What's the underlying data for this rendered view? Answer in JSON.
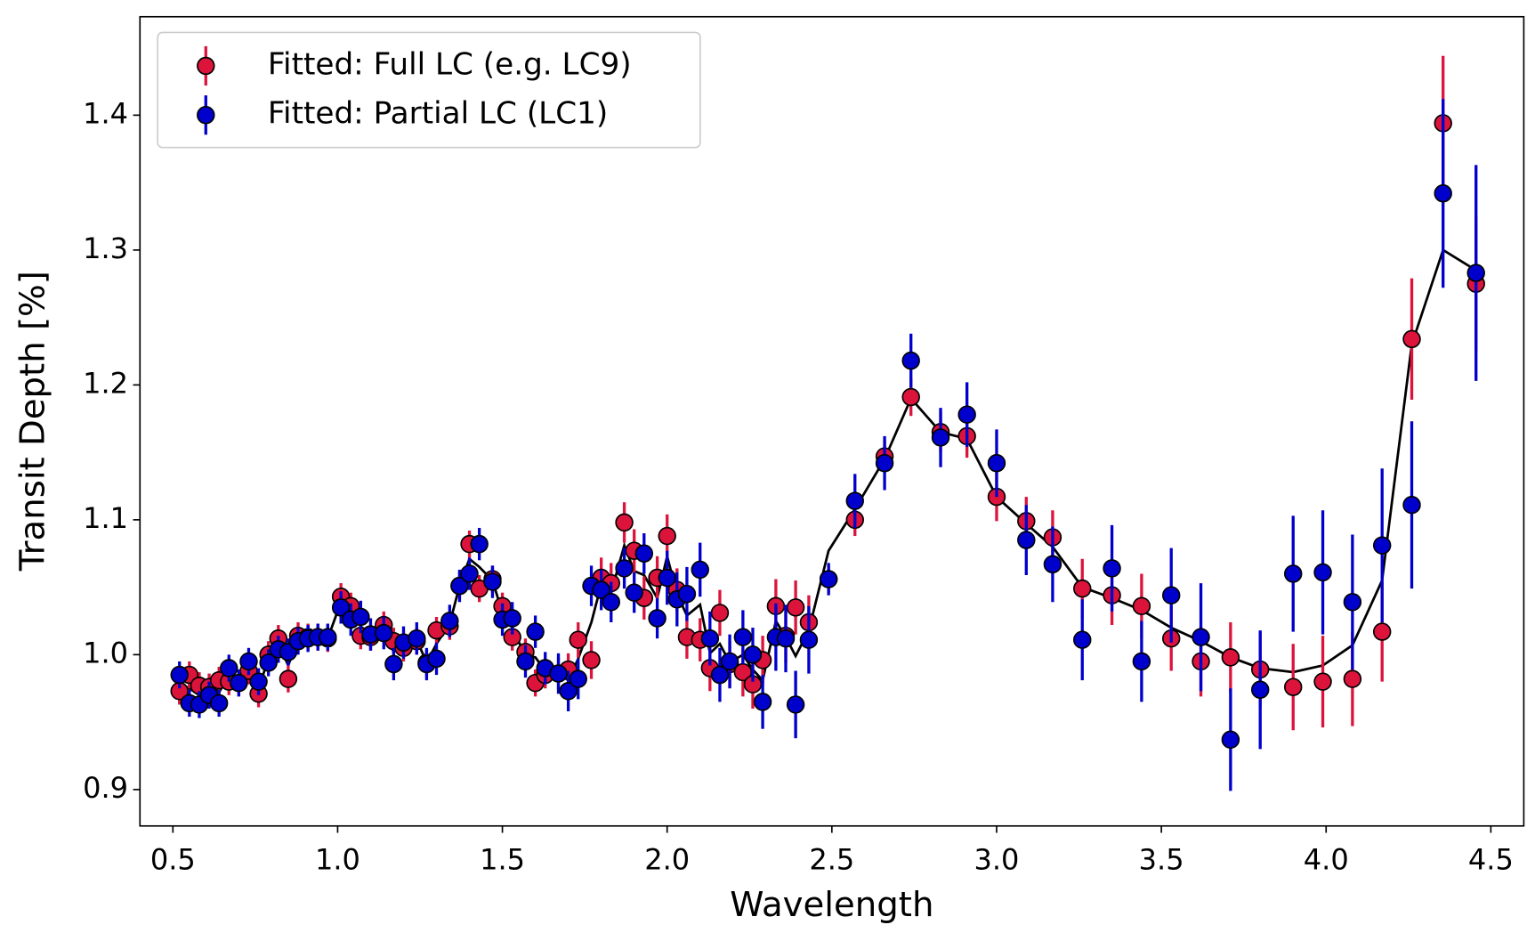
{
  "chart_data": {
    "type": "errorbar",
    "xlabel": "Wavelength",
    "ylabel": "Transit Depth [%]",
    "x": [
      0.52,
      0.55,
      0.58,
      0.61,
      0.64,
      0.67,
      0.7,
      0.73,
      0.76,
      0.79,
      0.82,
      0.85,
      0.88,
      0.91,
      0.94,
      0.97,
      1.01,
      1.04,
      1.07,
      1.1,
      1.14,
      1.17,
      1.2,
      1.24,
      1.27,
      1.3,
      1.34,
      1.37,
      1.4,
      1.43,
      1.47,
      1.5,
      1.53,
      1.57,
      1.6,
      1.63,
      1.67,
      1.7,
      1.73,
      1.77,
      1.8,
      1.83,
      1.87,
      1.9,
      1.93,
      1.97,
      2.0,
      2.03,
      2.06,
      2.1,
      2.13,
      2.16,
      2.19,
      2.23,
      2.26,
      2.29,
      2.33,
      2.36,
      2.39,
      2.43,
      2.49,
      2.57,
      2.66,
      2.74,
      2.83,
      2.91,
      3.0,
      3.09,
      3.17,
      3.26,
      3.35,
      3.44,
      3.53,
      3.62,
      3.71,
      3.8,
      3.9,
      3.99,
      4.08,
      4.17,
      4.26,
      4.355,
      4.455
    ],
    "series": [
      {
        "name": "Fitted: Full LC (e.g. LC9)",
        "color": "#dc143c",
        "values": [
          0.973,
          0.985,
          0.977,
          0.976,
          0.981,
          0.98,
          0.979,
          0.988,
          0.971,
          1.0,
          1.012,
          0.982,
          1.014,
          1.013,
          1.013,
          1.012,
          1.043,
          1.036,
          1.014,
          1.013,
          1.022,
          1.01,
          1.005,
          1.01,
          0.994,
          1.018,
          1.021,
          1.051,
          1.082,
          1.049,
          1.056,
          1.036,
          1.013,
          1.002,
          0.979,
          0.985,
          0.986,
          0.989,
          1.011,
          0.996,
          1.057,
          1.053,
          1.098,
          1.077,
          1.042,
          1.057,
          1.088,
          1.048,
          1.013,
          1.011,
          0.99,
          1.031,
          0.993,
          0.987,
          0.978,
          0.996,
          1.036,
          1.014,
          1.035,
          1.024,
          1.056,
          1.1,
          1.147,
          1.191,
          1.165,
          1.162,
          1.117,
          1.099,
          1.087,
          1.049,
          1.044,
          1.036,
          1.012,
          0.995,
          0.998,
          0.989,
          0.976,
          0.98,
          0.982,
          1.017,
          1.234,
          1.394,
          1.275
        ],
        "errors": [
          0.01,
          0.01,
          0.01,
          0.01,
          0.01,
          0.01,
          0.01,
          0.01,
          0.01,
          0.01,
          0.01,
          0.01,
          0.01,
          0.01,
          0.01,
          0.01,
          0.01,
          0.01,
          0.01,
          0.01,
          0.01,
          0.01,
          0.01,
          0.01,
          0.01,
          0.01,
          0.01,
          0.01,
          0.01,
          0.01,
          0.01,
          0.01,
          0.01,
          0.01,
          0.01,
          0.01,
          0.012,
          0.012,
          0.013,
          0.014,
          0.015,
          0.015,
          0.015,
          0.016,
          0.016,
          0.016,
          0.016,
          0.016,
          0.016,
          0.016,
          0.017,
          0.017,
          0.017,
          0.018,
          0.018,
          0.018,
          0.02,
          0.02,
          0.02,
          0.02,
          0.01,
          0.012,
          0.012,
          0.014,
          0.015,
          0.016,
          0.018,
          0.018,
          0.02,
          0.022,
          0.022,
          0.024,
          0.024,
          0.026,
          0.026,
          0.028,
          0.032,
          0.034,
          0.035,
          0.037,
          0.045,
          0.05,
          0.05
        ]
      },
      {
        "name": "Fitted: Partial LC (LC1)",
        "color": "#0000cd",
        "values": [
          0.985,
          0.964,
          0.963,
          0.97,
          0.964,
          0.99,
          0.979,
          0.995,
          0.98,
          0.994,
          1.004,
          1.002,
          1.01,
          1.012,
          1.013,
          1.013,
          1.035,
          1.026,
          1.028,
          1.015,
          1.016,
          0.993,
          1.009,
          1.012,
          0.993,
          0.997,
          1.025,
          1.051,
          1.06,
          1.082,
          1.054,
          1.026,
          1.027,
          0.995,
          1.017,
          0.99,
          0.986,
          0.973,
          0.982,
          1.051,
          1.048,
          1.039,
          1.064,
          1.046,
          1.075,
          1.027,
          1.057,
          1.041,
          1.045,
          1.063,
          1.012,
          0.985,
          0.995,
          1.013,
          1.0,
          0.965,
          1.013,
          1.012,
          0.963,
          1.011,
          1.056,
          1.114,
          1.142,
          1.218,
          1.161,
          1.178,
          1.142,
          1.085,
          1.067,
          1.011,
          1.064,
          0.995,
          1.044,
          1.013,
          0.937,
          0.974,
          1.06,
          1.061,
          1.039,
          1.081,
          1.111,
          1.342,
          1.283
        ],
        "errors": [
          0.01,
          0.01,
          0.01,
          0.01,
          0.01,
          0.01,
          0.01,
          0.01,
          0.01,
          0.01,
          0.01,
          0.01,
          0.01,
          0.01,
          0.01,
          0.01,
          0.012,
          0.012,
          0.012,
          0.012,
          0.012,
          0.012,
          0.012,
          0.012,
          0.012,
          0.012,
          0.012,
          0.012,
          0.012,
          0.012,
          0.012,
          0.012,
          0.012,
          0.012,
          0.012,
          0.012,
          0.015,
          0.015,
          0.015,
          0.015,
          0.015,
          0.015,
          0.015,
          0.015,
          0.015,
          0.015,
          0.02,
          0.02,
          0.02,
          0.02,
          0.02,
          0.02,
          0.02,
          0.02,
          0.02,
          0.02,
          0.025,
          0.025,
          0.025,
          0.025,
          0.012,
          0.02,
          0.02,
          0.02,
          0.022,
          0.024,
          0.025,
          0.026,
          0.028,
          0.03,
          0.032,
          0.03,
          0.035,
          0.04,
          0.038,
          0.044,
          0.043,
          0.046,
          0.05,
          0.057,
          0.062,
          0.07,
          0.08
        ]
      }
    ],
    "line": {
      "color": "#000000",
      "values": [
        0.979,
        0.975,
        0.97,
        0.973,
        0.972,
        0.985,
        0.979,
        0.992,
        0.975,
        0.997,
        1.008,
        0.992,
        1.012,
        1.012,
        1.013,
        1.012,
        1.039,
        1.031,
        1.021,
        1.014,
        1.019,
        1.002,
        1.007,
        1.011,
        0.994,
        1.008,
        1.023,
        1.051,
        1.071,
        1.065,
        1.055,
        1.031,
        1.02,
        0.999,
        0.998,
        0.988,
        0.986,
        0.981,
        0.997,
        1.024,
        1.052,
        1.046,
        1.081,
        1.062,
        1.059,
        1.042,
        1.073,
        1.045,
        1.029,
        1.037,
        1.001,
        1.008,
        0.994,
        1.0,
        0.989,
        0.981,
        1.025,
        1.013,
        0.999,
        1.018,
        1.077,
        1.108,
        1.145,
        1.19,
        1.165,
        1.16,
        1.117,
        1.097,
        1.08,
        1.05,
        1.042,
        1.033,
        1.02,
        1.01,
        0.998,
        0.99,
        0.987,
        0.992,
        1.007,
        1.055,
        1.23,
        1.3,
        1.285
      ]
    },
    "xlim": [
      0.4,
      4.6
    ],
    "ylim": [
      0.873,
      1.473
    ],
    "xticks": [
      0.5,
      {
        "value": 1.0,
        "label": "1.0"
      },
      1.5,
      {
        "value": 2.0,
        "label": "2.0"
      },
      2.5,
      {
        "value": 3.0,
        "label": "3.0"
      },
      3.5,
      {
        "value": 4.0,
        "label": "4.0"
      },
      4.5
    ],
    "yticks": [
      0.9,
      {
        "value": 1.0,
        "label": "1.0"
      },
      1.1,
      1.2,
      1.3,
      1.4
    ],
    "legend": "upper left",
    "grid": false
  }
}
